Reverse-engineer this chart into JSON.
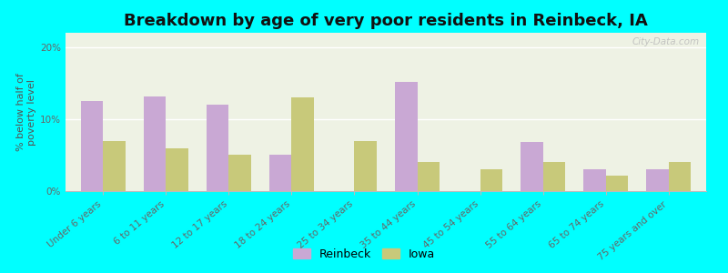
{
  "title": "Breakdown by age of very poor residents in Reinbeck, IA",
  "categories": [
    "Under 6 years",
    "6 to 11 years",
    "12 to 17 years",
    "18 to 24 years",
    "25 to 34 years",
    "35 to 44 years",
    "45 to 54 years",
    "55 to 64 years",
    "65 to 74 years",
    "75 years and over"
  ],
  "reinbeck_values": [
    12.5,
    13.2,
    12.0,
    5.0,
    0.0,
    15.2,
    0.0,
    6.8,
    3.0,
    3.0
  ],
  "iowa_values": [
    7.0,
    6.0,
    5.0,
    13.0,
    7.0,
    4.0,
    3.0,
    4.0,
    2.2,
    4.0
  ],
  "reinbeck_color": "#c9a8d4",
  "iowa_color": "#c8c97a",
  "ylabel": "% below half of\npoverty level",
  "ylim": [
    0,
    22
  ],
  "yticks": [
    0,
    10,
    20
  ],
  "ytick_labels": [
    "0%",
    "10%",
    "20%"
  ],
  "background_color": "#00ffff",
  "plot_bg_color": "#eef2e4",
  "title_fontsize": 13,
  "axis_label_fontsize": 8,
  "tick_fontsize": 7.5,
  "legend_fontsize": 9,
  "bar_width": 0.35,
  "watermark": "City-Data.com"
}
